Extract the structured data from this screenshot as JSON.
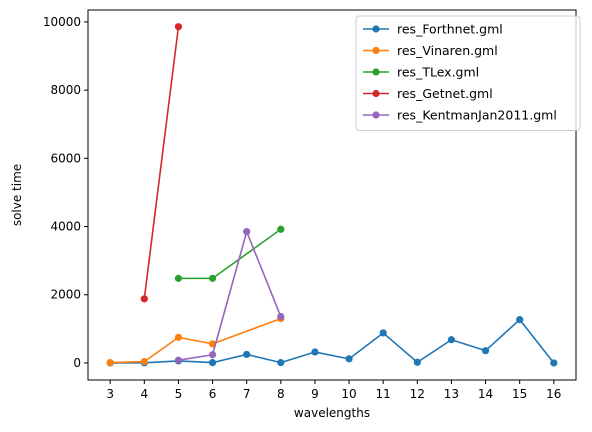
{
  "chart_data": {
    "type": "line",
    "title": "",
    "xlabel": "wavelengths",
    "ylabel": "solve time",
    "xlim": [
      2.35,
      16.65
    ],
    "ylim": [
      -500,
      10350
    ],
    "xticks": [
      3,
      4,
      5,
      6,
      7,
      8,
      9,
      10,
      11,
      12,
      13,
      14,
      15,
      16
    ],
    "xtick_labels": [
      "3",
      "4",
      "5",
      "6",
      "7",
      "8",
      "9",
      "10",
      "11",
      "12",
      "13",
      "14",
      "15",
      "16"
    ],
    "yticks": [
      0,
      2000,
      4000,
      6000,
      8000,
      10000
    ],
    "ytick_labels": [
      "0",
      "2000",
      "4000",
      "6000",
      "8000",
      "10000"
    ],
    "grid": false,
    "legend_position": "top-right",
    "series": [
      {
        "name": "res_Forthnet.gml",
        "color": "#1f77b4",
        "x": [
          3,
          4,
          5,
          6,
          7,
          8,
          9,
          10,
          11,
          12,
          13,
          14,
          15,
          16
        ],
        "y": [
          0,
          5,
          60,
          10,
          250,
          10,
          320,
          120,
          880,
          20,
          680,
          360,
          1270,
          0
        ]
      },
      {
        "name": "res_Vinaren.gml",
        "color": "#ff7f0e",
        "x": [
          3,
          4,
          5,
          6,
          8
        ],
        "y": [
          10,
          40,
          750,
          560,
          1300
        ]
      },
      {
        "name": "res_TLex.gml",
        "color": "#2ca02c",
        "x": [
          5,
          6,
          8
        ],
        "y": [
          2480,
          2480,
          3920
        ]
      },
      {
        "name": "res_Getnet.gml",
        "color": "#d62728",
        "x": [
          4,
          5
        ],
        "y": [
          1880,
          9860
        ]
      },
      {
        "name": "res_KentmanJan2011.gml",
        "color": "#9467bd",
        "x": [
          5,
          6,
          7,
          8
        ],
        "y": [
          80,
          240,
          3850,
          1360
        ]
      }
    ]
  }
}
